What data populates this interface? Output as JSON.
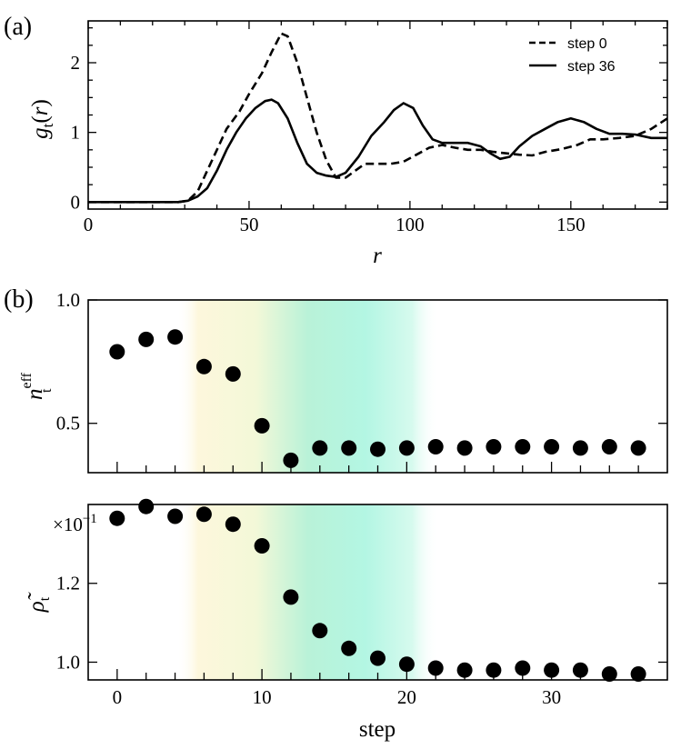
{
  "chart_data": [
    {
      "type": "line",
      "panel_label": "(a)",
      "xlabel": "r",
      "ylabel_main": "g",
      "ylabel_sub": "t",
      "ylabel_suffix": "(r)",
      "xlim": [
        0,
        180
      ],
      "ylim": [
        -0.1,
        2.6
      ],
      "xticks": [
        0,
        50,
        100,
        150
      ],
      "yticks": [
        0,
        1,
        2
      ],
      "legend_position": "top-right",
      "series": [
        {
          "name": "step 0",
          "style": "dashed",
          "points": [
            [
              0,
              0
            ],
            [
              10,
              0
            ],
            [
              20,
              0
            ],
            [
              28,
              0
            ],
            [
              31,
              0.02
            ],
            [
              34,
              0.15
            ],
            [
              37,
              0.45
            ],
            [
              40,
              0.75
            ],
            [
              43,
              1.05
            ],
            [
              47,
              1.3
            ],
            [
              50,
              1.55
            ],
            [
              54,
              1.85
            ],
            [
              57,
              2.15
            ],
            [
              60,
              2.42
            ],
            [
              62,
              2.38
            ],
            [
              65,
              2.0
            ],
            [
              68,
              1.5
            ],
            [
              71,
              1.0
            ],
            [
              74,
              0.6
            ],
            [
              77,
              0.35
            ],
            [
              80,
              0.35
            ],
            [
              83,
              0.45
            ],
            [
              86,
              0.55
            ],
            [
              90,
              0.55
            ],
            [
              94,
              0.55
            ],
            [
              98,
              0.58
            ],
            [
              102,
              0.68
            ],
            [
              106,
              0.78
            ],
            [
              110,
              0.82
            ],
            [
              114,
              0.78
            ],
            [
              118,
              0.75
            ],
            [
              122,
              0.75
            ],
            [
              126,
              0.72
            ],
            [
              130,
              0.7
            ],
            [
              134,
              0.68
            ],
            [
              138,
              0.67
            ],
            [
              142,
              0.72
            ],
            [
              147,
              0.76
            ],
            [
              152,
              0.82
            ],
            [
              156,
              0.9
            ],
            [
              160,
              0.9
            ],
            [
              165,
              0.92
            ],
            [
              170,
              0.95
            ],
            [
              175,
              1.05
            ],
            [
              180,
              1.2
            ]
          ]
        },
        {
          "name": "step 36",
          "style": "solid",
          "points": [
            [
              0,
              0
            ],
            [
              10,
              0
            ],
            [
              20,
              0
            ],
            [
              28,
              0
            ],
            [
              31,
              0.02
            ],
            [
              34,
              0.08
            ],
            [
              37,
              0.2
            ],
            [
              40,
              0.45
            ],
            [
              43,
              0.75
            ],
            [
              46,
              1.0
            ],
            [
              49,
              1.2
            ],
            [
              52,
              1.35
            ],
            [
              55,
              1.45
            ],
            [
              57,
              1.47
            ],
            [
              59,
              1.42
            ],
            [
              62,
              1.2
            ],
            [
              65,
              0.85
            ],
            [
              68,
              0.55
            ],
            [
              71,
              0.42
            ],
            [
              74,
              0.38
            ],
            [
              77,
              0.36
            ],
            [
              80,
              0.42
            ],
            [
              84,
              0.65
            ],
            [
              88,
              0.95
            ],
            [
              92,
              1.15
            ],
            [
              95,
              1.32
            ],
            [
              98,
              1.42
            ],
            [
              101,
              1.35
            ],
            [
              104,
              1.1
            ],
            [
              107,
              0.9
            ],
            [
              110,
              0.85
            ],
            [
              114,
              0.85
            ],
            [
              118,
              0.85
            ],
            [
              122,
              0.8
            ],
            [
              125,
              0.7
            ],
            [
              128,
              0.62
            ],
            [
              131,
              0.65
            ],
            [
              134,
              0.8
            ],
            [
              138,
              0.95
            ],
            [
              142,
              1.05
            ],
            [
              146,
              1.15
            ],
            [
              150,
              1.2
            ],
            [
              154,
              1.15
            ],
            [
              158,
              1.05
            ],
            [
              162,
              0.98
            ],
            [
              166,
              0.98
            ],
            [
              170,
              0.97
            ],
            [
              175,
              0.92
            ],
            [
              180,
              0.92
            ]
          ]
        }
      ]
    },
    {
      "type": "scatter",
      "panel_label": "(b)",
      "xlabel": "",
      "ylabel_main": "n",
      "ylabel_sub": "t",
      "ylabel_sup": "eff",
      "xlim": [
        -2,
        38
      ],
      "ylim": [
        0.3,
        1.0
      ],
      "yticks": [
        0.5,
        1.0
      ],
      "ytick_labels": [
        "0.5",
        "1.0"
      ],
      "x": [
        0,
        2,
        4,
        6,
        8,
        10,
        12,
        14,
        16,
        18,
        20,
        22,
        24,
        26,
        28,
        30,
        32,
        34,
        36
      ],
      "values": [
        0.79,
        0.84,
        0.85,
        0.73,
        0.7,
        0.49,
        0.35,
        0.4,
        0.4,
        0.395,
        0.4,
        0.405,
        0.4,
        0.405,
        0.405,
        0.405,
        0.4,
        0.405,
        0.4
      ]
    },
    {
      "type": "scatter",
      "xlabel": "step",
      "ylabel_main": "ρ̃",
      "ylabel_sub": "t",
      "scale_label": "×10",
      "scale_exponent": "−1",
      "xlim": [
        -2,
        38
      ],
      "ylim": [
        0.955,
        1.4
      ],
      "xticks": [
        0,
        10,
        20,
        30
      ],
      "yticks": [
        1.0,
        1.2
      ],
      "ytick_labels": [
        "1.0",
        "1.2"
      ],
      "x": [
        0,
        2,
        4,
        6,
        8,
        10,
        12,
        14,
        16,
        18,
        20,
        22,
        24,
        26,
        28,
        30,
        32,
        34,
        36
      ],
      "values": [
        1.365,
        1.395,
        1.37,
        1.375,
        1.35,
        1.295,
        1.165,
        1.08,
        1.035,
        1.01,
        0.995,
        0.985,
        0.98,
        0.98,
        0.985,
        0.98,
        0.98,
        0.97,
        0.97
      ]
    }
  ]
}
